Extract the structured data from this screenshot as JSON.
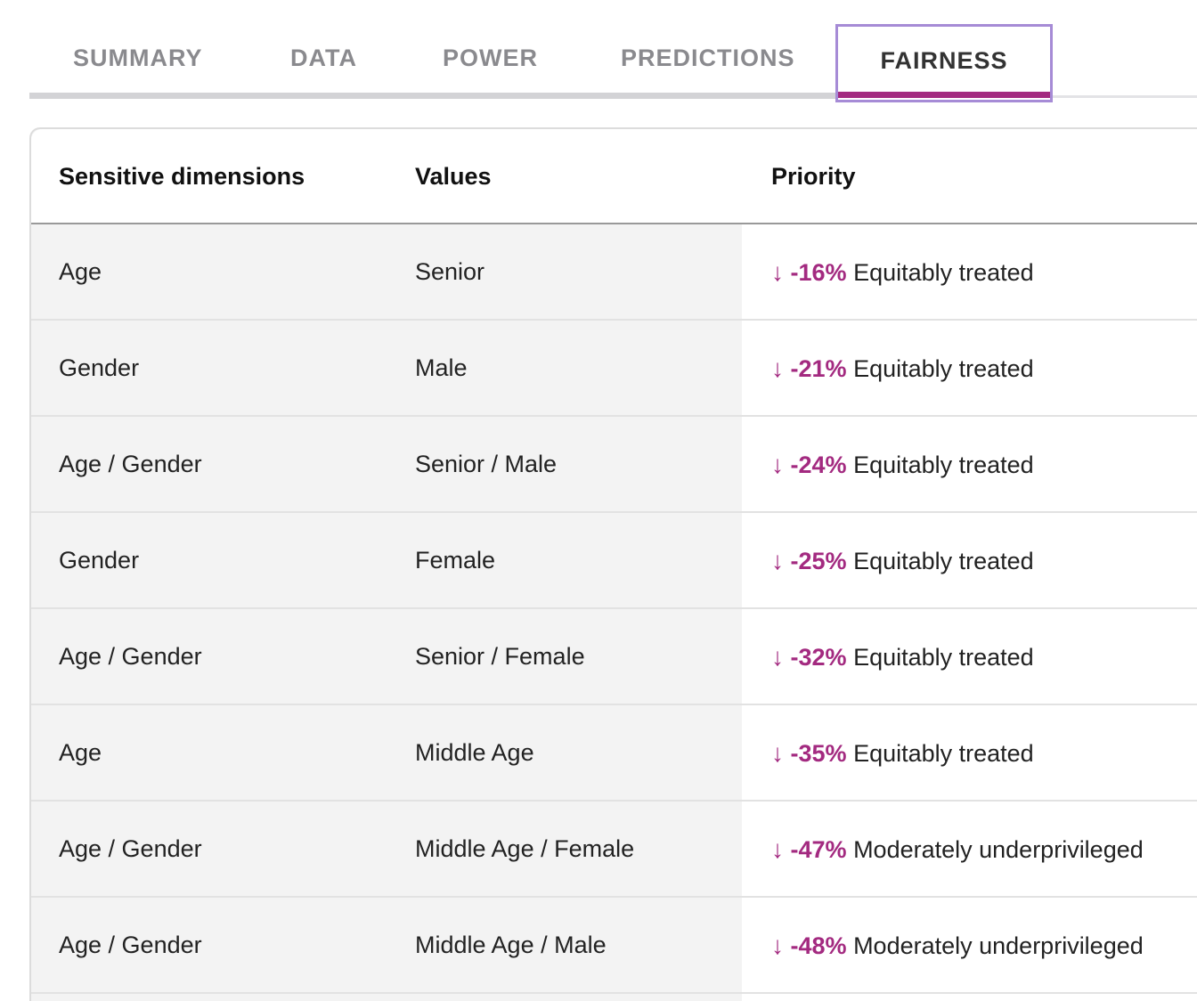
{
  "tabs": [
    {
      "label": "SUMMARY"
    },
    {
      "label": "DATA"
    },
    {
      "label": "POWER"
    },
    {
      "label": "PREDICTIONS"
    },
    {
      "label": "FAIRNESS",
      "active": true
    }
  ],
  "colors": {
    "accent": "#a32a80",
    "focus_outline": "#a68bd6",
    "row_bg": "#f3f3f3"
  },
  "table": {
    "headers": [
      "Sensitive dimensions",
      "Values",
      "Priority"
    ],
    "rows": [
      {
        "dimension": "Age",
        "value": "Senior",
        "change": "-16%",
        "status": "Equitably treated",
        "icon": "arrow-down-icon"
      },
      {
        "dimension": "Gender",
        "value": "Male",
        "change": "-21%",
        "status": "Equitably treated",
        "icon": "arrow-down-icon"
      },
      {
        "dimension": "Age / Gender",
        "value": "Senior / Male",
        "change": "-24%",
        "status": "Equitably treated",
        "icon": "arrow-down-icon"
      },
      {
        "dimension": "Gender",
        "value": "Female",
        "change": "-25%",
        "status": "Equitably treated",
        "icon": "arrow-down-icon"
      },
      {
        "dimension": "Age / Gender",
        "value": "Senior / Female",
        "change": "-32%",
        "status": "Equitably treated",
        "icon": "arrow-down-icon"
      },
      {
        "dimension": "Age",
        "value": "Middle Age",
        "change": "-35%",
        "status": "Equitably treated",
        "icon": "arrow-down-icon"
      },
      {
        "dimension": "Age / Gender",
        "value": "Middle Age / Female",
        "change": "-47%",
        "status": "Moderately underprivileged",
        "icon": "arrow-down-icon"
      },
      {
        "dimension": "Age / Gender",
        "value": "Middle Age / Male",
        "change": "-48%",
        "status": "Moderately underprivileged",
        "icon": "arrow-down-icon"
      }
    ]
  }
}
